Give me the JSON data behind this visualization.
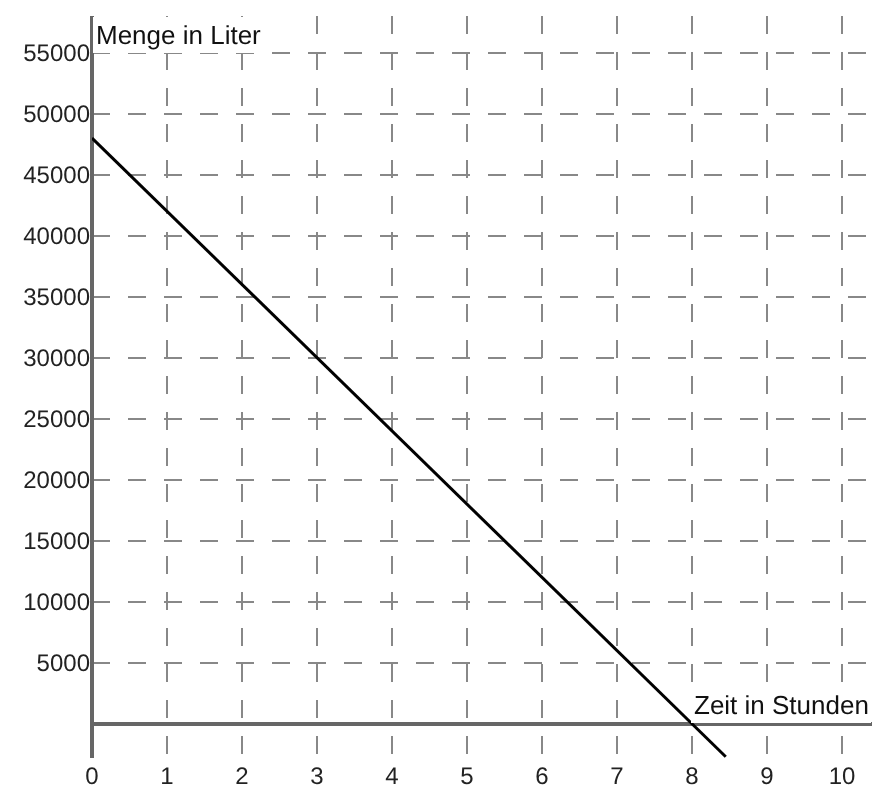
{
  "chart_data": {
    "type": "line",
    "xlabel": "Zeit in Stunden",
    "ylabel": "Menge in Liter",
    "xlim": [
      0,
      10.4
    ],
    "ylim": [
      -2800,
      58000
    ],
    "xticks": [
      0,
      1,
      2,
      3,
      4,
      5,
      6,
      7,
      8,
      9,
      10
    ],
    "yticks": [
      5000,
      10000,
      15000,
      20000,
      25000,
      30000,
      35000,
      40000,
      45000,
      50000,
      55000
    ],
    "grid": true,
    "marker": "none",
    "line_style": "solid",
    "series": [
      {
        "color": "#000000",
        "x": [
          0,
          8.45
        ],
        "values": [
          48000,
          -2700
        ]
      }
    ]
  }
}
